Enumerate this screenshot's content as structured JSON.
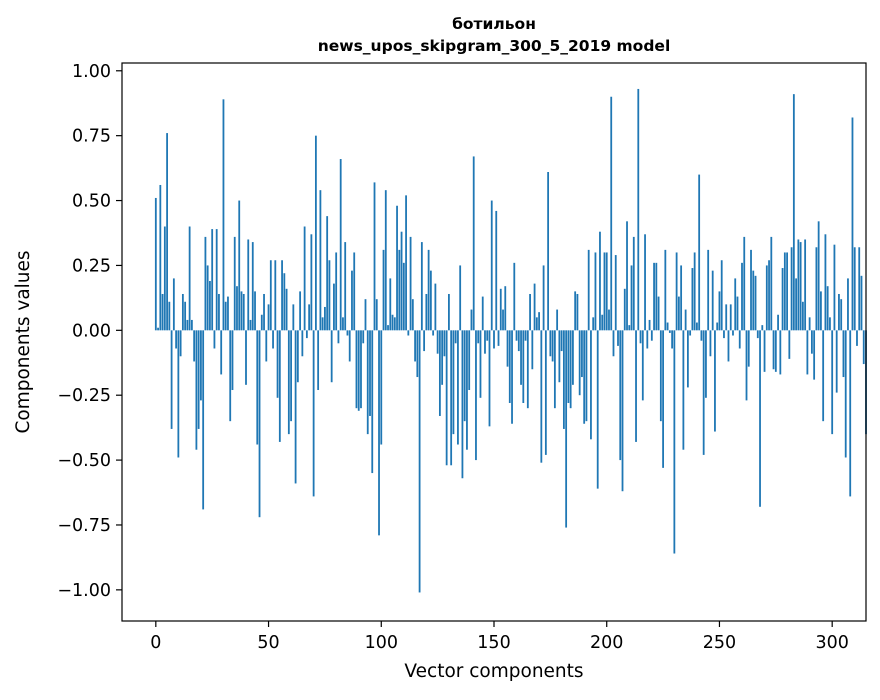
{
  "chart_data": {
    "type": "bar",
    "title_lines": [
      "ботильон",
      "news_upos_skipgram_300_5_2019 model"
    ],
    "xlabel": "Vector components",
    "ylabel": "Components values",
    "xlim": [
      -15,
      315
    ],
    "ylim": [
      -1.12,
      1.03
    ],
    "x_ticks": [
      0,
      50,
      100,
      150,
      200,
      250,
      300
    ],
    "y_ticks": [
      -1.0,
      -0.75,
      -0.5,
      -0.25,
      0.0,
      0.25,
      0.5,
      0.75,
      1.0
    ],
    "x_tick_labels": [
      "0",
      "50",
      "100",
      "150",
      "200",
      "250",
      "300"
    ],
    "y_tick_labels": [
      "−1.00",
      "−0.75",
      "−0.50",
      "−0.25",
      "0.00",
      "0.25",
      "0.50",
      "0.75",
      "1.00"
    ],
    "bar_color": "#1f77b4",
    "grid": false,
    "values": [
      0.51,
      0.01,
      0.56,
      0.14,
      0.4,
      0.76,
      0.11,
      -0.38,
      0.2,
      -0.07,
      -0.49,
      -0.1,
      0.14,
      0.11,
      0.04,
      0.4,
      0.04,
      -0.12,
      -0.46,
      -0.38,
      -0.27,
      -0.69,
      0.36,
      0.25,
      0.19,
      0.39,
      -0.07,
      0.39,
      0.14,
      -0.17,
      0.89,
      0.11,
      0.13,
      -0.35,
      -0.23,
      0.36,
      0.17,
      0.5,
      0.15,
      0.14,
      -0.21,
      0.35,
      0.04,
      0.34,
      0.15,
      -0.44,
      -0.72,
      0.06,
      0.14,
      -0.12,
      0.1,
      0.27,
      -0.07,
      0.27,
      -0.26,
      -0.43,
      0.27,
      0.22,
      0.16,
      -0.4,
      -0.35,
      0.1,
      -0.59,
      -0.2,
      0.15,
      -0.1,
      0.4,
      -0.03,
      0.1,
      0.37,
      -0.64,
      0.75,
      -0.23,
      0.54,
      0.05,
      0.09,
      0.44,
      0.27,
      -0.2,
      0.18,
      0.3,
      -0.05,
      0.66,
      0.05,
      0.34,
      -0.02,
      -0.12,
      0.23,
      0.3,
      -0.3,
      -0.31,
      -0.3,
      -0.05,
      0.12,
      -0.4,
      -0.33,
      -0.55,
      0.57,
      0.12,
      -0.79,
      -0.44,
      0.31,
      0.54,
      0.02,
      0.2,
      0.06,
      0.05,
      0.48,
      0.31,
      0.38,
      0.26,
      0.52,
      -0.02,
      0.36,
      0.12,
      -0.12,
      -0.18,
      -1.01,
      0.34,
      -0.08,
      0.14,
      0.31,
      0.23,
      -0.02,
      0.18,
      -0.09,
      -0.33,
      -0.21,
      -0.1,
      -0.52,
      0.14,
      -0.52,
      -0.4,
      -0.05,
      -0.44,
      0.25,
      -0.57,
      -0.35,
      -0.46,
      -0.23,
      0.08,
      0.67,
      -0.5,
      -0.05,
      -0.26,
      0.13,
      -0.09,
      -0.04,
      -0.37,
      0.5,
      -0.07,
      0.46,
      -0.06,
      0.16,
      0.08,
      0.17,
      -0.14,
      -0.28,
      -0.36,
      0.26,
      -0.04,
      -0.08,
      -0.21,
      -0.28,
      -0.04,
      -0.3,
      0.14,
      -0.15,
      0.18,
      0.05,
      0.07,
      -0.51,
      0.25,
      -0.48,
      0.61,
      -0.1,
      -0.12,
      -0.3,
      0.08,
      -0.2,
      -0.08,
      -0.38,
      -0.76,
      -0.28,
      -0.3,
      -0.21,
      0.15,
      0.14,
      -0.25,
      -0.18,
      -0.36,
      -0.35,
      0.31,
      -0.42,
      0.05,
      0.3,
      -0.61,
      0.38,
      0.06,
      0.3,
      0.3,
      0.08,
      0.9,
      -0.1,
      0.29,
      -0.06,
      -0.5,
      -0.62,
      0.16,
      0.42,
      0.02,
      0.25,
      0.36,
      -0.43,
      0.93,
      -0.05,
      -0.27,
      0.37,
      -0.07,
      0.04,
      -0.04,
      0.26,
      0.26,
      0.13,
      -0.35,
      -0.53,
      0.31,
      0.03,
      -0.01,
      -0.07,
      -0.86,
      0.3,
      0.13,
      0.25,
      -0.46,
      0.08,
      -0.22,
      -0.02,
      0.24,
      0.3,
      0.03,
      0.6,
      -0.04,
      -0.48,
      -0.26,
      0.31,
      -0.1,
      0.23,
      -0.39,
      0.03,
      0.15,
      0.27,
      -0.03,
      0.1,
      -0.12,
      0.1,
      -0.02,
      0.2,
      0.13,
      -0.07,
      0.26,
      0.36,
      -0.27,
      -0.14,
      0.31,
      0.23,
      0.21,
      -0.03,
      -0.68,
      0.02,
      -0.16,
      0.25,
      0.27,
      0.36,
      -0.15,
      -0.16,
      0.06,
      -0.17,
      0.24,
      0.3,
      0.3,
      -0.11,
      0.32,
      0.91,
      0.2,
      0.35,
      0.34,
      0.11,
      0.35,
      -0.17,
      0.05,
      -0.09,
      -0.19,
      0.32,
      0.42,
      0.15,
      -0.35,
      0.37,
      0.17,
      0.05,
      -0.4,
      0.33,
      -0.24,
      0.14,
      0.12,
      -0.18,
      -0.49,
      0.2,
      -0.64,
      0.82,
      0.32,
      -0.06,
      0.32,
      0.21,
      -0.13,
      -0.4
    ]
  }
}
